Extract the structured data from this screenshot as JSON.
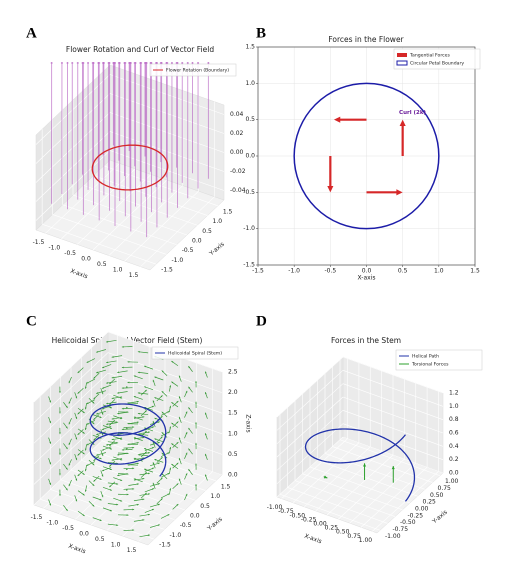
{
  "chart_data": [
    {
      "type": "vector-field-3d",
      "panel_label": "A",
      "title": "Flower Rotation and Curl of Vector Field",
      "xlabel": "X-axis",
      "ylabel": "Y-axis",
      "xlim": [
        -1.8,
        1.8
      ],
      "ylim": [
        -1.8,
        1.8
      ],
      "zlim": [
        -0.05,
        0.05
      ],
      "xticks": [
        -1.5,
        {
          "value": -1,
          "label": "-1.0"
        },
        -0.5,
        {
          "value": 0,
          "label": "0.0"
        },
        0.5,
        {
          "value": 1,
          "label": "1.0"
        },
        1.5
      ],
      "yticks": [
        -1.5,
        {
          "value": -1,
          "label": "-1.0"
        },
        -0.5,
        {
          "value": 0,
          "label": "0.0"
        },
        0.5,
        {
          "value": 1,
          "label": "1.0"
        },
        1.5
      ],
      "zticks": [
        -0.04,
        -0.02,
        {
          "value": 0,
          "label": "0.00"
        },
        0.02,
        0.04
      ],
      "field": {
        "color": "#b45cc0",
        "grid": [
          -1.5,
          -1,
          -0.5,
          0,
          0.5,
          1,
          1.5
        ]
      },
      "boundary": {
        "name": "Flower Rotation (Boundary)",
        "color": "#d62728",
        "radius": 1
      }
    },
    {
      "type": "quiver",
      "panel_label": "B",
      "title": "Forces in the Flower",
      "xlabel": "X-axis",
      "xlim": [
        -1.5,
        1.5
      ],
      "ylim": [
        -1.5,
        1.5
      ],
      "grid": true,
      "xticks": [
        -1.5,
        {
          "value": -1,
          "label": "-1.0"
        },
        -0.5,
        {
          "value": 0,
          "label": "0.0"
        },
        0.5,
        {
          "value": 1,
          "label": "1.0"
        },
        1.5
      ],
      "yticks": [
        -1.5,
        {
          "value": -1,
          "label": "-1.0"
        },
        -0.5,
        {
          "value": 0,
          "label": "0.0"
        },
        0.5,
        {
          "value": 1,
          "label": "1.0"
        },
        1.5
      ],
      "arrows": {
        "name": "Tangential Forces",
        "color": "#d62728",
        "x": [
          0,
          -0.5,
          0,
          0.5
        ],
        "y": [
          0.5,
          0,
          -0.5,
          0
        ],
        "u": [
          -0.45,
          0,
          0.5,
          0
        ],
        "v": [
          0,
          -0.5,
          0,
          0.5
        ]
      },
      "boundary": {
        "name": "Circular Petal Boundary",
        "color": "#1c1ca8",
        "radius": 1
      },
      "annotation": {
        "text": "Curl (2k)",
        "x": 0.45,
        "y": 0.6,
        "color": "#6a1b9a"
      }
    },
    {
      "type": "helix-3d",
      "panel_label": "C",
      "title": "Helicoidal Spiral and Vector Field (Stem)",
      "xlabel": "X-axis",
      "ylabel": "Y-axis",
      "zlabel": "Z-axis",
      "xlim": [
        -1.8,
        1.8
      ],
      "ylim": [
        -1.8,
        1.8
      ],
      "zlim": [
        0,
        2.5
      ],
      "xticks": [
        -1.5,
        {
          "value": -1,
          "label": "-1.0"
        },
        -0.5,
        {
          "value": 0,
          "label": "0.0"
        },
        0.5,
        {
          "value": 1,
          "label": "1.0"
        },
        1.5
      ],
      "yticks": [
        -1.5,
        {
          "value": -1,
          "label": "-1.0"
        },
        -0.5,
        {
          "value": 0,
          "label": "0.0"
        },
        0.5,
        {
          "value": 1,
          "label": "1.0"
        },
        1.5
      ],
      "zticks": [
        {
          "value": 0,
          "label": "0.0"
        },
        0.5,
        {
          "value": 1,
          "label": "1.0"
        },
        1.5,
        {
          "value": 2,
          "label": "2.0"
        },
        2.5
      ],
      "helix": {
        "name": "Helicoidal Spiral (Stem)",
        "color": "#2233aa",
        "radius": 1,
        "turns": 2,
        "zrange": [
          0.6,
          2
        ]
      },
      "field": {
        "color": "#3a9a3a",
        "grid": [
          -1.5,
          -1,
          -0.5,
          0,
          0.5,
          1,
          1.5
        ],
        "levels": [
          0,
          0.5,
          1,
          1.5,
          2,
          2.5
        ]
      }
    },
    {
      "type": "helix-3d",
      "panel_label": "D",
      "title": "Forces in the Stem",
      "xlabel": "X-axis",
      "ylabel": "Y-axis",
      "xlim": [
        -1.1,
        1.1
      ],
      "ylim": [
        -1.1,
        1.1
      ],
      "zlim": [
        0,
        1.2
      ],
      "xticks": [
        {
          "value": -1,
          "label": "-1.00"
        },
        {
          "value": -0.75,
          "label": "-0.75"
        },
        {
          "value": -0.5,
          "label": "-0.50"
        },
        {
          "value": -0.25,
          "label": "-0.25"
        },
        {
          "value": 0,
          "label": "0.00"
        },
        0.25,
        {
          "value": 0.5,
          "label": "0.50"
        },
        0.75,
        {
          "value": 1,
          "label": "1.00"
        }
      ],
      "yticks": [
        {
          "value": -1,
          "label": "-1.00"
        },
        {
          "value": -0.75,
          "label": "-0.75"
        },
        {
          "value": -0.5,
          "label": "-0.50"
        },
        {
          "value": -0.25,
          "label": "-0.25"
        },
        {
          "value": 0,
          "label": "0.00"
        },
        0.25,
        {
          "value": 0.5,
          "label": "0.50"
        },
        0.75,
        {
          "value": 1,
          "label": "1.00"
        }
      ],
      "zticks": [
        {
          "value": 0,
          "label": "0.0"
        },
        0.2,
        0.4,
        0.6,
        0.8,
        {
          "value": 1,
          "label": "1.0"
        },
        1.2
      ],
      "helix": {
        "name": "Helical Path",
        "color": "#2233aa",
        "radius": 1,
        "turns": 1,
        "zrange": [
          0,
          1
        ]
      },
      "forces": {
        "name": "Torsional Forces",
        "color": "#2ca02c",
        "x": [
          -0.6,
          0.1,
          0.6
        ],
        "y": [
          -0.3,
          0,
          0.2
        ],
        "z": [
          0.1,
          0.1,
          0.1
        ],
        "u": [
          0.08,
          0,
          0
        ],
        "v": [
          0,
          0,
          0
        ],
        "w": [
          0,
          0.25,
          0.25
        ]
      }
    }
  ]
}
